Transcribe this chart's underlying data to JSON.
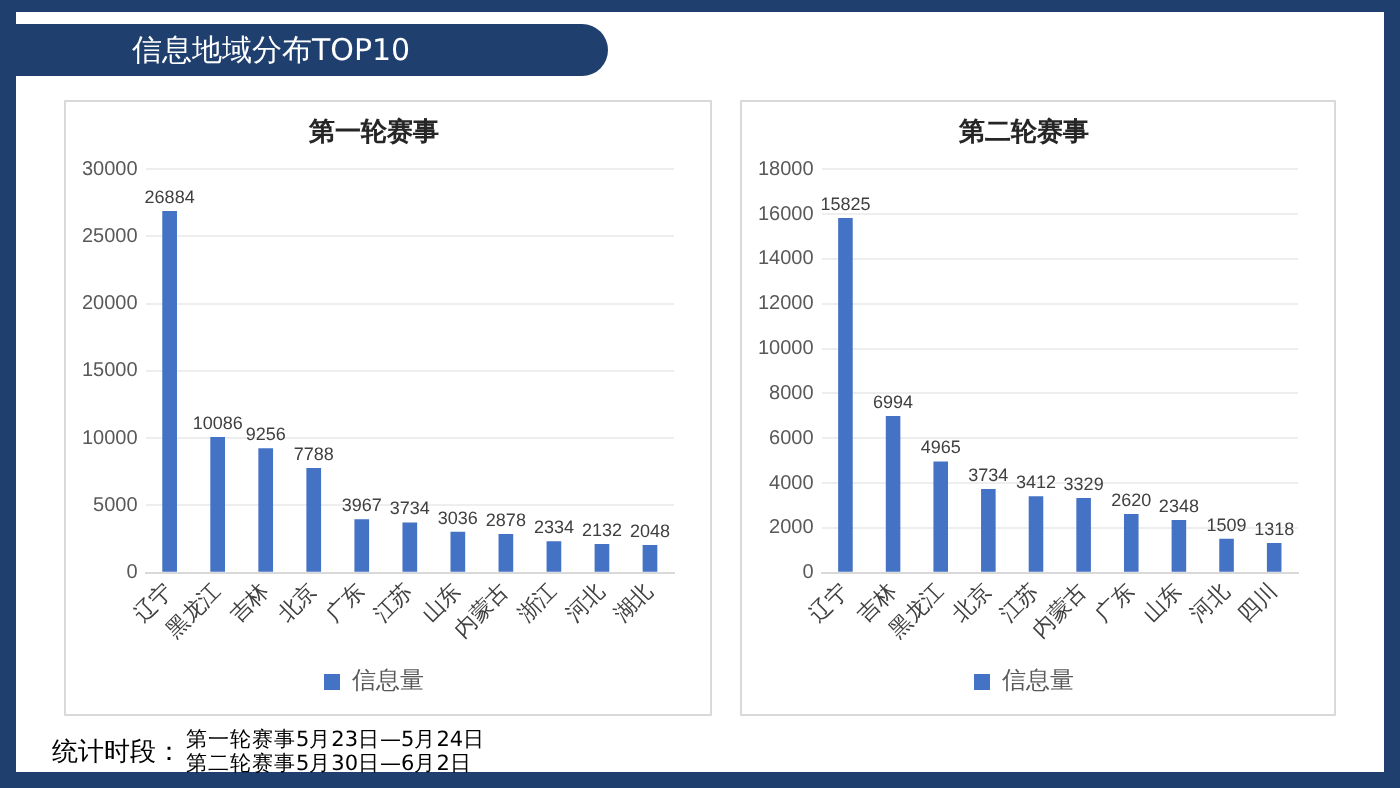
{
  "chart_data": [
    {
      "type": "bar",
      "title": "第一轮赛事",
      "categories": [
        "辽宁",
        "黑龙江",
        "吉林",
        "北京",
        "广东",
        "江苏",
        "山东",
        "内蒙古",
        "浙江",
        "河北",
        "湖北"
      ],
      "series": [
        {
          "name": "信息量",
          "color": "#4472c4",
          "values": [
            26884,
            10086,
            9256,
            7788,
            3967,
            3734,
            3036,
            2878,
            2334,
            2132,
            2048
          ]
        }
      ],
      "ylim": [
        0,
        30000
      ],
      "yticks": [
        0,
        5000,
        10000,
        15000,
        20000,
        25000,
        30000
      ],
      "grid": "y",
      "legend": "bottom",
      "data_labels": true,
      "annotations": [
        "信息地域分布TOP10",
        "统计时段：",
        "第一轮赛事5月23日—5月24日",
        "第二轮赛事5月30日—6月2日"
      ]
    },
    {
      "type": "bar",
      "title": "第二轮赛事",
      "categories": [
        "辽宁",
        "吉林",
        "黑龙江",
        "北京",
        "江苏",
        "内蒙古",
        "广东",
        "山东",
        "河北",
        "四川"
      ],
      "series": [
        {
          "name": "信息量",
          "color": "#4472c4",
          "values": [
            15825,
            6994,
            4965,
            3734,
            3412,
            3329,
            2620,
            2348,
            1509,
            1318
          ]
        }
      ],
      "ylim": [
        0,
        18000
      ],
      "yticks": [
        0,
        2000,
        4000,
        6000,
        8000,
        10000,
        12000,
        14000,
        16000,
        18000
      ],
      "grid": "y",
      "legend": "bottom",
      "data_labels": true
    }
  ]
}
